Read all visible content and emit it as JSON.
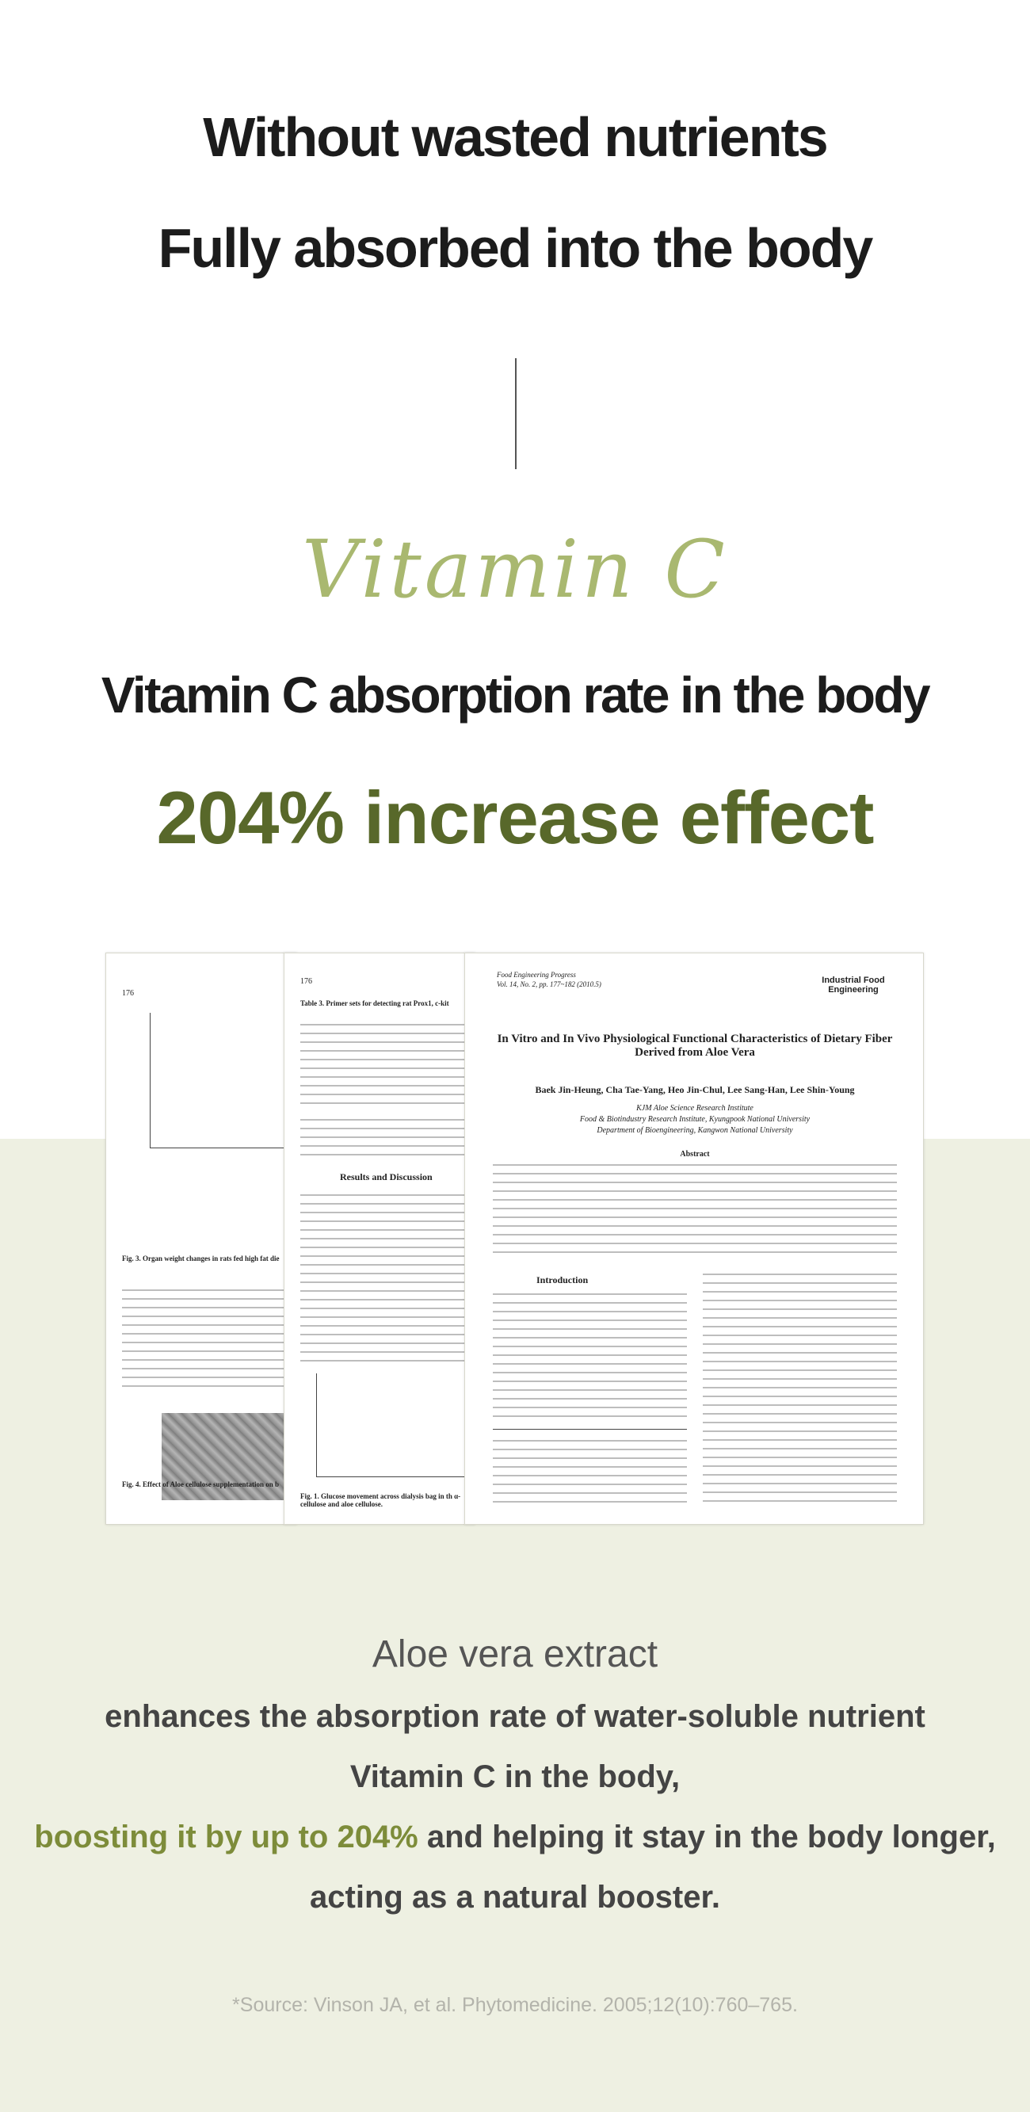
{
  "headline": {
    "lines": [
      "Without wasted nutrients",
      "Fully absorbed into the body"
    ]
  },
  "script_title": "Vitamin C",
  "subtitle": "Vitamin C absorption rate in the body",
  "highlight": "204% increase effect",
  "papers": {
    "left": {
      "page": "176",
      "fig3": "Fig. 3. Organ weight changes in rats fed high fat die",
      "fig4": "Fig. 4. Effect of Aloe cellulose supplementation on b"
    },
    "middle": {
      "page": "176",
      "table": "Table 3. Primer sets for detecting rat Prox1, c-kit",
      "section": "Results and Discussion",
      "fig1": "Fig. 1. Glucose movement across dialysis bag in th α-cellulose and aloe cellulose."
    },
    "right": {
      "journal": "Food Engineering Progress",
      "volume": "Vol. 14, No. 2, pp. 177~182 (2010.5)",
      "logo": "Industrial Food Engineering",
      "title": "In Vitro and In Vivo Physiological Functional Characteristics of Dietary Fiber Derived from Aloe Vera",
      "authors": "Baek Jin-Heung, Cha Tae-Yang, Heo Jin-Chul, Lee Sang-Han, Lee Shin-Young",
      "affiliation1": "KJM Aloe Science Research Institute",
      "affiliation2": "Food & Biotindustry Research Institute, Kyungpook National University",
      "affiliation3": "Department of Bioengineering, Kangwon National University",
      "abstract": "Abstract",
      "introduction": "Introduction"
    }
  },
  "description": {
    "intro": "Aloe vera extract",
    "line1": "enhances the absorption rate of water-soluble nutrient",
    "line2": "Vitamin C in the body,",
    "line3_highlight": "boosting it by up to 204%",
    "line3_rest": " and helping it stay in the body longer,",
    "line4": "acting as a natural booster."
  },
  "source": "*Source: Vinson JA, et al. Phytomedicine. 2005;12(10):760–765."
}
